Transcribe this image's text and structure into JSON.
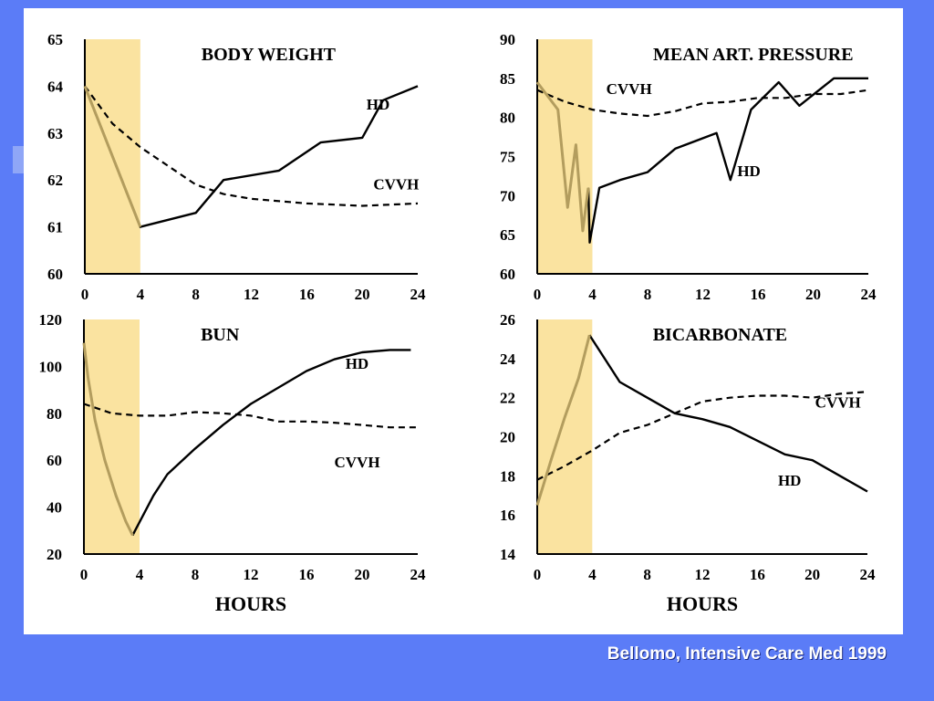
{
  "colors": {
    "background": "#5b7cf7",
    "panel": "#ffffff",
    "highlight_band": "#fae3a0",
    "highlight_line": "#b39d5e",
    "ink": "#000000"
  },
  "citation": "Bellomo, Intensive Care Med 1999",
  "chart_data": [
    {
      "type": "line",
      "title": "BODY WEIGHT",
      "xlabel": "",
      "ylabel": "",
      "xlim": [
        0,
        24
      ],
      "ylim": [
        60,
        65
      ],
      "xticks": [
        0,
        4,
        8,
        12,
        16,
        20,
        24
      ],
      "yticks": [
        60,
        61,
        62,
        63,
        64,
        65
      ],
      "highlight_x": [
        0,
        4
      ],
      "series": [
        {
          "name": "HD",
          "style": "solid",
          "label_at": [
            20.3,
            63.5
          ],
          "x": [
            0,
            4,
            8,
            10,
            14,
            17,
            20,
            21.5,
            24
          ],
          "y": [
            64,
            61,
            61.3,
            62,
            62.2,
            62.8,
            62.9,
            63.7,
            64
          ]
        },
        {
          "name": "CVVH",
          "style": "dashed",
          "label_at": [
            20.8,
            61.8
          ],
          "x": [
            0,
            2,
            4,
            6,
            8,
            10,
            12,
            16,
            20,
            24
          ],
          "y": [
            64,
            63.2,
            62.7,
            62.3,
            61.9,
            61.7,
            61.6,
            61.5,
            61.45,
            61.5
          ]
        }
      ],
      "highlight_series": {
        "x": [
          0,
          4
        ],
        "y": [
          64,
          61
        ]
      }
    },
    {
      "type": "line",
      "title": "MEAN ART. PRESSURE",
      "xlabel": "",
      "ylabel": "",
      "xlim": [
        0,
        24
      ],
      "ylim": [
        60,
        90
      ],
      "xticks": [
        0,
        4,
        8,
        12,
        16,
        20,
        24
      ],
      "yticks": [
        60,
        65,
        70,
        75,
        80,
        85,
        90
      ],
      "highlight_x": [
        0,
        4
      ],
      "series": [
        {
          "name": "CVVH",
          "style": "dashed",
          "label_at": [
            5,
            83
          ],
          "x": [
            0,
            2,
            4,
            6,
            8,
            10,
            12,
            14,
            16,
            18,
            20,
            22,
            24
          ],
          "y": [
            83.5,
            82,
            81,
            80.5,
            80.2,
            80.8,
            81.8,
            82,
            82.5,
            82.5,
            83,
            83,
            83.5
          ]
        },
        {
          "name": "HD",
          "style": "solid",
          "label_at": [
            14.5,
            72.5
          ],
          "x": [
            3.7,
            3.8,
            4.5,
            6,
            8,
            10,
            13,
            14,
            15.5,
            17.5,
            19,
            21.5,
            24
          ],
          "y": [
            71,
            64,
            71,
            72,
            73,
            76,
            78,
            72,
            81,
            84.5,
            81.5,
            85,
            85
          ]
        }
      ],
      "highlight_series": {
        "x": [
          0,
          1.5,
          2.2,
          2.8,
          3.3,
          3.7
        ],
        "y": [
          84.5,
          81,
          68.5,
          76.5,
          65.5,
          71
        ]
      }
    },
    {
      "type": "line",
      "title": "BUN",
      "xlabel": "HOURS",
      "ylabel": "",
      "xlim": [
        0,
        24
      ],
      "ylim": [
        20,
        120
      ],
      "xticks": [
        0,
        4,
        8,
        12,
        16,
        20,
        24
      ],
      "yticks": [
        20,
        40,
        60,
        80,
        100,
        120
      ],
      "highlight_x": [
        0,
        4
      ],
      "series": [
        {
          "name": "HD",
          "style": "solid",
          "label_at": [
            18.8,
            99
          ],
          "x": [
            3.5,
            5,
            6,
            8,
            10,
            12,
            14,
            16,
            18,
            20,
            22,
            23.5
          ],
          "y": [
            28,
            45,
            54,
            65,
            75,
            84,
            91,
            98,
            103,
            106,
            107,
            107
          ]
        },
        {
          "name": "CVVH",
          "style": "dashed",
          "label_at": [
            18,
            57
          ],
          "x": [
            0,
            2,
            4,
            6,
            8,
            10,
            12,
            14,
            16,
            18,
            20,
            22,
            24
          ],
          "y": [
            84,
            80,
            79,
            79,
            80.5,
            80,
            79,
            76.5,
            76.5,
            76,
            75,
            74,
            74
          ]
        }
      ],
      "highlight_series": {
        "x": [
          0,
          0.3,
          0.8,
          1.5,
          2.3,
          3,
          3.5
        ],
        "y": [
          110,
          95,
          77,
          60,
          45,
          34,
          28
        ]
      }
    },
    {
      "type": "line",
      "title": "BICARBONATE",
      "xlabel": "HOURS",
      "ylabel": "",
      "xlim": [
        0,
        24
      ],
      "ylim": [
        14,
        26
      ],
      "xticks": [
        0,
        4,
        8,
        12,
        16,
        20,
        24
      ],
      "yticks": [
        14,
        16,
        18,
        20,
        22,
        24,
        26
      ],
      "highlight_x": [
        0,
        4
      ],
      "series": [
        {
          "name": "CVVH",
          "style": "dashed",
          "label_at": [
            20.2,
            21.5
          ],
          "x": [
            0,
            2,
            4,
            6,
            8,
            10,
            12,
            14,
            16,
            18,
            20,
            22,
            24
          ],
          "y": [
            17.8,
            18.5,
            19.3,
            20.2,
            20.6,
            21.2,
            21.8,
            22,
            22.1,
            22.1,
            22,
            22.2,
            22.3
          ]
        },
        {
          "name": "HD",
          "style": "solid",
          "label_at": [
            17.5,
            17.5
          ],
          "x": [
            3.8,
            6,
            8,
            10,
            12,
            14,
            16,
            18,
            20,
            22,
            24
          ],
          "y": [
            25.2,
            22.8,
            22,
            21.2,
            20.9,
            20.5,
            19.8,
            19.1,
            18.8,
            18,
            17.2
          ]
        }
      ],
      "highlight_series": {
        "x": [
          0,
          1,
          2,
          3,
          3.8
        ],
        "y": [
          16.5,
          18.8,
          21,
          23,
          25.2
        ]
      }
    }
  ]
}
